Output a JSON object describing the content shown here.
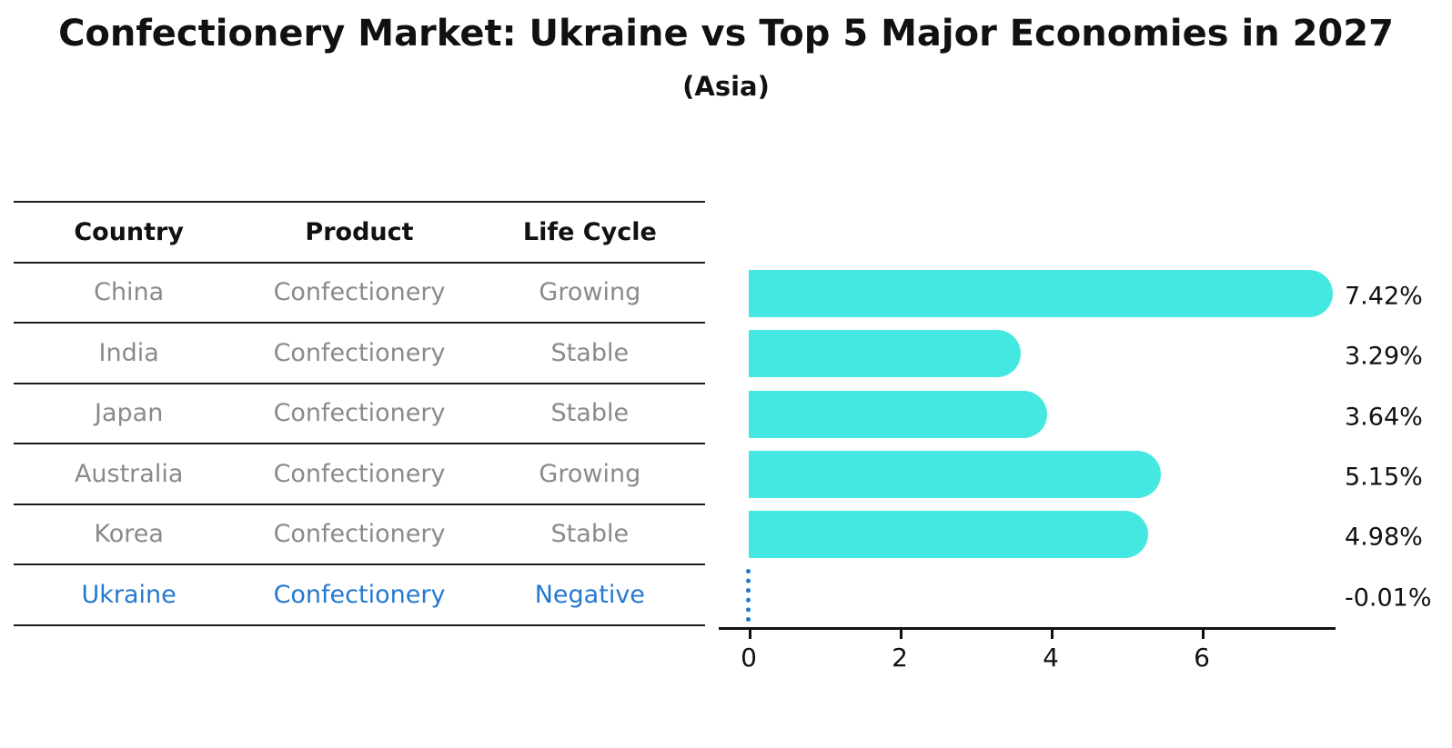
{
  "title": "Confectionery Market: Ukraine vs Top 5 Major Economies in 2027",
  "subtitle": "(Asia)",
  "colors": {
    "bar": "#45E8E0",
    "highlight": "#2478D0",
    "row_text": "#8A8A8A",
    "axis": "#111111"
  },
  "table": {
    "headers": [
      "Country",
      "Product",
      "Life Cycle"
    ],
    "rows": [
      {
        "country": "China",
        "product": "Confectionery",
        "life_cycle": "Growing",
        "highlight": false
      },
      {
        "country": "India",
        "product": "Confectionery",
        "life_cycle": "Stable",
        "highlight": false
      },
      {
        "country": "Japan",
        "product": "Confectionery",
        "life_cycle": "Stable",
        "highlight": false
      },
      {
        "country": "Australia",
        "product": "Confectionery",
        "life_cycle": "Growing",
        "highlight": false
      },
      {
        "country": "Korea",
        "product": "Confectionery",
        "life_cycle": "Stable",
        "highlight": false
      },
      {
        "country": "Ukraine",
        "product": "Confectionery",
        "life_cycle": "Negative",
        "highlight": true
      }
    ]
  },
  "chart_data": {
    "type": "bar",
    "orientation": "horizontal",
    "title": "Confectionery Market: Ukraine vs Top 5 Major Economies in 2027",
    "subtitle": "(Asia)",
    "categories": [
      "China",
      "India",
      "Japan",
      "Australia",
      "Korea",
      "Ukraine"
    ],
    "values": [
      7.42,
      3.29,
      3.64,
      5.15,
      4.98,
      -0.01
    ],
    "value_labels": [
      "7.42%",
      "3.29%",
      "3.64%",
      "5.15%",
      "4.98%",
      "-0.01%"
    ],
    "xtick_labels": [
      "0",
      "2",
      "4",
      "6"
    ],
    "xtick_values": [
      0,
      2,
      4,
      6
    ],
    "xlim": [
      -0.4,
      7.8
    ],
    "bar_color": "#45E8E0",
    "highlight_index": 5,
    "highlight_marker": "dotted zero line",
    "grid": false,
    "legend": "none"
  }
}
